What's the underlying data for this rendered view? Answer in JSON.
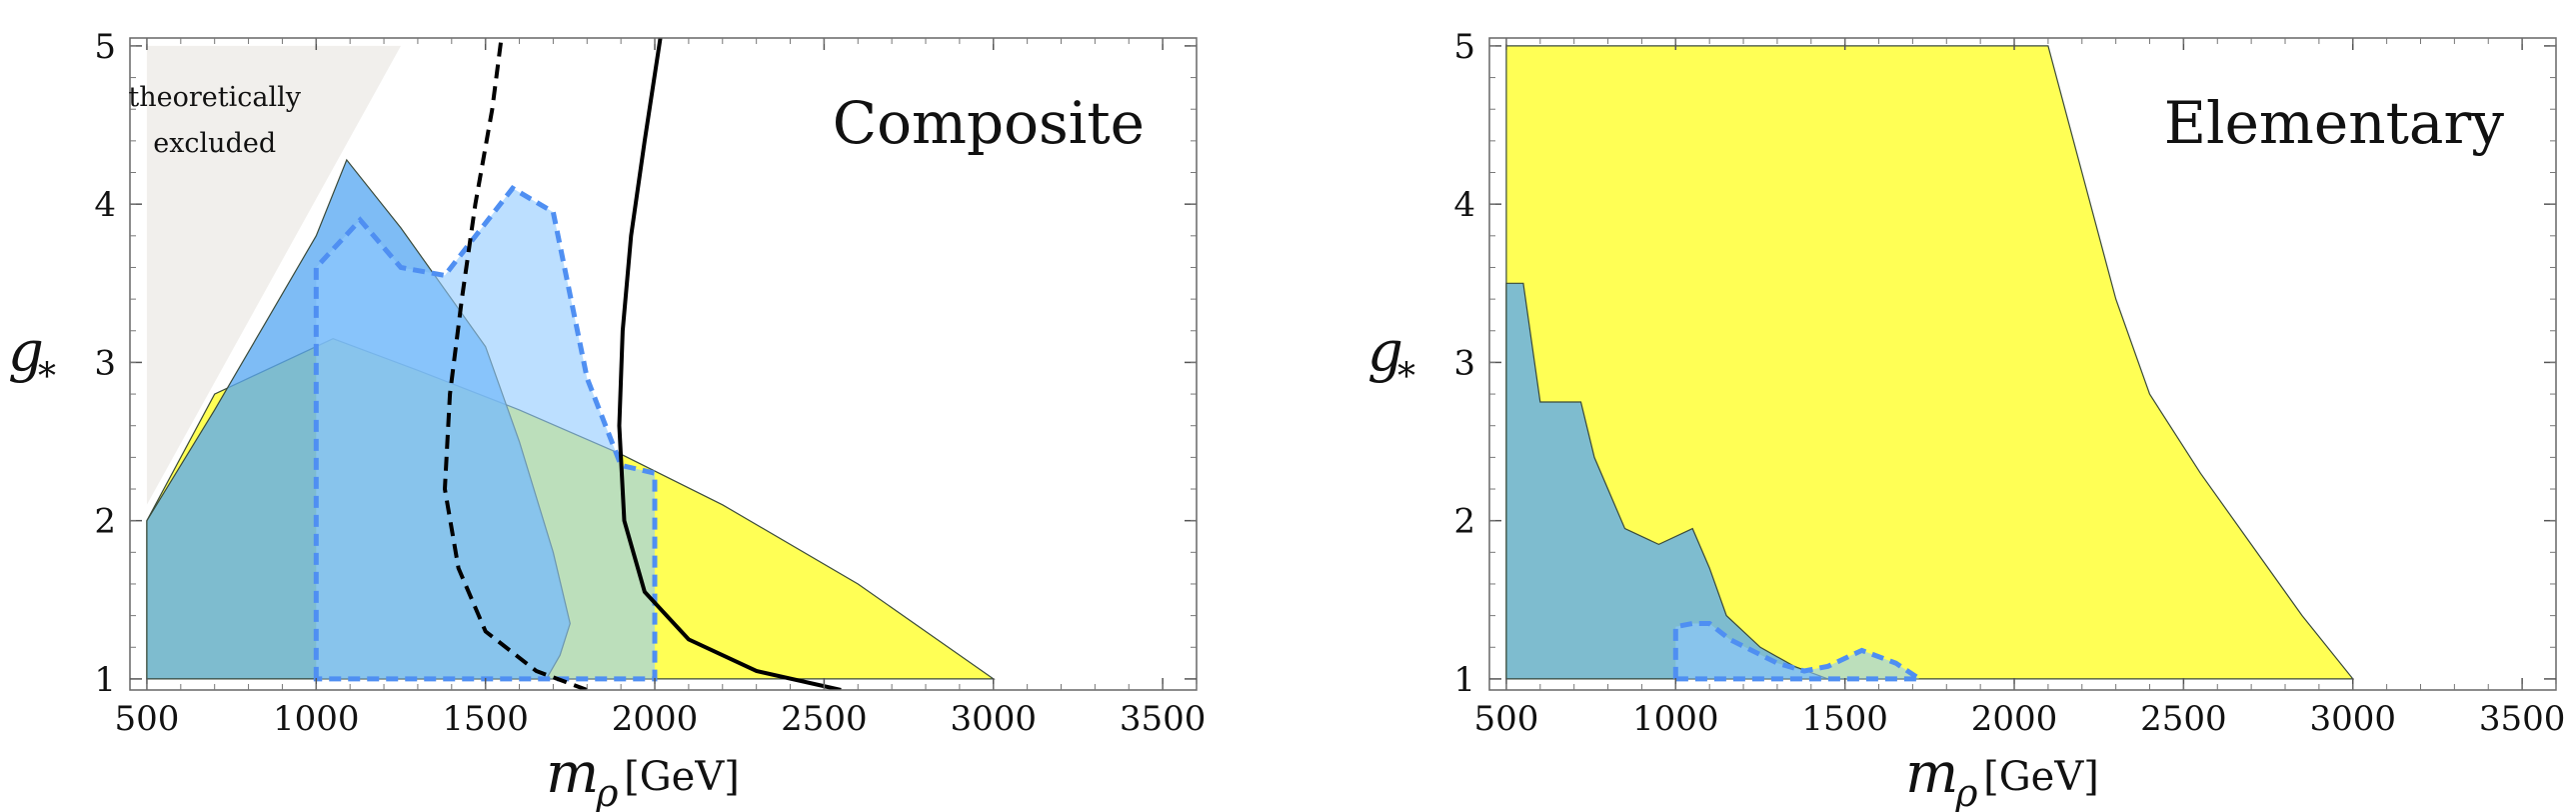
{
  "chart_data": [
    {
      "type": "area",
      "panel_label": "Composite",
      "xlabel": "m",
      "xlabel_sub": "ρ",
      "xlabel_unit": "[GeV]",
      "ylabel": "g",
      "ylabel_sub": "*",
      "xlim": [
        450,
        3600
      ],
      "ylim": [
        0.93,
        5.05
      ],
      "x_ticks": [
        500,
        1000,
        1500,
        2000,
        2500,
        3000,
        3500
      ],
      "y_ticks": [
        1,
        2,
        3,
        4,
        5
      ],
      "annotation": {
        "text_line1": "theoretically",
        "text_line2": "excluded",
        "points": [
          [
            500,
            5.0
          ],
          [
            1250,
            5.0
          ],
          [
            500,
            2.1
          ]
        ],
        "color": "#f1efec"
      },
      "regions": [
        {
          "id": "yellow",
          "color": "#ffff55",
          "points": [
            [
              500,
              1.0
            ],
            [
              500,
              2.0
            ],
            [
              700,
              2.8
            ],
            [
              850,
              2.95
            ],
            [
              1050,
              3.15
            ],
            [
              1300,
              2.95
            ],
            [
              1600,
              2.7
            ],
            [
              1900,
              2.42
            ],
            [
              2200,
              2.1
            ],
            [
              2600,
              1.6
            ],
            [
              3000,
              1.0
            ]
          ]
        },
        {
          "id": "blue-solid",
          "color": "#5aa9f2",
          "points": [
            [
              500,
              1.0
            ],
            [
              500,
              2.0
            ],
            [
              700,
              2.7
            ],
            [
              850,
              3.25
            ],
            [
              1000,
              3.8
            ],
            [
              1090,
              4.28
            ],
            [
              1250,
              3.85
            ],
            [
              1500,
              3.1
            ],
            [
              1600,
              2.5
            ],
            [
              1700,
              1.8
            ],
            [
              1750,
              1.35
            ],
            [
              1720,
              1.15
            ],
            [
              1680,
              1.0
            ]
          ]
        },
        {
          "id": "blue-dashed",
          "color": "#8fcaff",
          "points": [
            [
              1000,
              1.0
            ],
            [
              1000,
              3.6
            ],
            [
              1130,
              3.9
            ],
            [
              1250,
              3.6
            ],
            [
              1380,
              3.55
            ],
            [
              1580,
              4.1
            ],
            [
              1700,
              3.95
            ],
            [
              1800,
              2.9
            ],
            [
              1900,
              2.35
            ],
            [
              2000,
              2.3
            ],
            [
              2000,
              1.0
            ],
            [
              1900,
              1.0
            ],
            [
              1850,
              1.0
            ],
            [
              1780,
              1.0
            ],
            [
              1700,
              1.0
            ]
          ]
        }
      ],
      "curves": [
        {
          "id": "dashed-black",
          "style": "dashed",
          "points": [
            [
              1800,
              0.93
            ],
            [
              1650,
              1.05
            ],
            [
              1500,
              1.3
            ],
            [
              1420,
              1.7
            ],
            [
              1380,
              2.2
            ],
            [
              1395,
              2.8
            ],
            [
              1430,
              3.4
            ],
            [
              1470,
              4.0
            ],
            [
              1520,
              4.6
            ],
            [
              1550,
              5.1
            ]
          ]
        },
        {
          "id": "solid-black",
          "style": "solid",
          "points": [
            [
              2550,
              0.93
            ],
            [
              2300,
              1.05
            ],
            [
              2100,
              1.25
            ],
            [
              1970,
              1.55
            ],
            [
              1910,
              2.0
            ],
            [
              1895,
              2.6
            ],
            [
              1905,
              3.2
            ],
            [
              1930,
              3.8
            ],
            [
              1970,
              4.4
            ],
            [
              2020,
              5.1
            ]
          ]
        }
      ]
    },
    {
      "type": "area",
      "panel_label": "Elementary",
      "xlabel": "m",
      "xlabel_sub": "ρ",
      "xlabel_unit": "[GeV]",
      "ylabel": "g",
      "ylabel_sub": "*",
      "xlim": [
        450,
        3600
      ],
      "ylim": [
        0.93,
        5.05
      ],
      "x_ticks": [
        500,
        1000,
        1500,
        2000,
        2500,
        3000,
        3500
      ],
      "y_ticks": [
        1,
        2,
        3,
        4,
        5
      ],
      "regions": [
        {
          "id": "yellow",
          "color": "#ffff55",
          "points": [
            [
              500,
              1.0
            ],
            [
              500,
              5.0
            ],
            [
              2100,
              5.0
            ],
            [
              2200,
              4.2
            ],
            [
              2300,
              3.4
            ],
            [
              2400,
              2.8
            ],
            [
              2550,
              2.3
            ],
            [
              2700,
              1.85
            ],
            [
              2850,
              1.4
            ],
            [
              3000,
              1.0
            ]
          ]
        },
        {
          "id": "blue-solid",
          "color": "#5aa9f2",
          "points": [
            [
              500,
              1.0
            ],
            [
              500,
              3.5
            ],
            [
              550,
              3.5
            ],
            [
              600,
              2.75
            ],
            [
              720,
              2.75
            ],
            [
              760,
              2.4
            ],
            [
              850,
              1.95
            ],
            [
              950,
              1.85
            ],
            [
              1050,
              1.95
            ],
            [
              1100,
              1.7
            ],
            [
              1150,
              1.4
            ],
            [
              1250,
              1.2
            ],
            [
              1350,
              1.08
            ],
            [
              1450,
              1.0
            ]
          ]
        },
        {
          "id": "blue-dashed",
          "color": "#8fcaff",
          "points": [
            [
              1000,
              1.0
            ],
            [
              1000,
              1.33
            ],
            [
              1050,
              1.35
            ],
            [
              1100,
              1.35
            ],
            [
              1160,
              1.25
            ],
            [
              1300,
              1.1
            ],
            [
              1380,
              1.05
            ],
            [
              1450,
              1.08
            ],
            [
              1550,
              1.18
            ],
            [
              1650,
              1.1
            ],
            [
              1720,
              1.0
            ]
          ]
        }
      ],
      "curves": []
    }
  ]
}
